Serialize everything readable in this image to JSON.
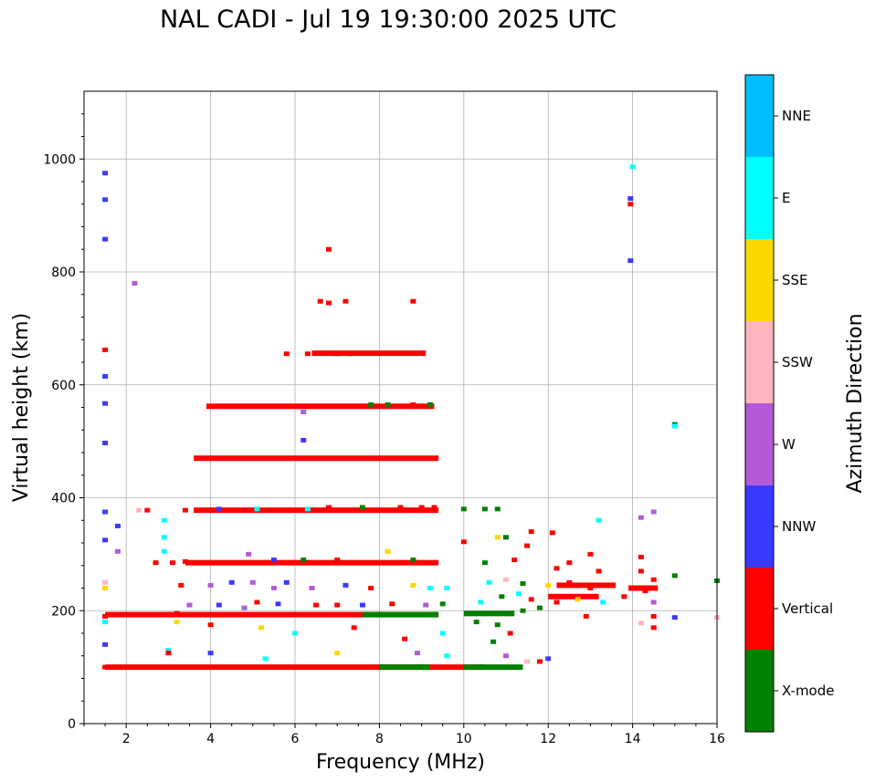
{
  "chart_data": {
    "type": "scatter",
    "title": "NAL CADI - Jul 19 19:30:00 2025 UTC",
    "xlabel": "Frequency (MHz)",
    "ylabel": "Virtual height (km)",
    "xlim": [
      1,
      16
    ],
    "ylim": [
      0,
      1120
    ],
    "xticks": [
      2,
      4,
      6,
      8,
      10,
      12,
      14,
      16
    ],
    "yticks": [
      0,
      200,
      400,
      600,
      800,
      1000
    ],
    "grid": true,
    "colorbar": {
      "label": "Azimuth Direction",
      "categories": [
        "X-mode",
        "Vertical",
        "NNW",
        "W",
        "SSW",
        "SSE",
        "E",
        "NNE"
      ],
      "colors": [
        "#008000",
        "#ff0000",
        "#3a3aff",
        "#b45ad8",
        "#ffb6c1",
        "#ffd700",
        "#00ffff",
        "#00bfff"
      ]
    },
    "points": [
      [
        1.5,
        975,
        2
      ],
      [
        1.5,
        928,
        2
      ],
      [
        1.5,
        858,
        2
      ],
      [
        1.5,
        662,
        1
      ],
      [
        1.5,
        615,
        2
      ],
      [
        1.5,
        567,
        2
      ],
      [
        1.5,
        497,
        2
      ],
      [
        1.5,
        375,
        2
      ],
      [
        1.5,
        325,
        2
      ],
      [
        1.5,
        250,
        4
      ],
      [
        1.5,
        240,
        5
      ],
      [
        1.5,
        190,
        1
      ],
      [
        1.5,
        180,
        6
      ],
      [
        1.5,
        140,
        2
      ],
      [
        1.5,
        100,
        1
      ],
      [
        1.8,
        350,
        2
      ],
      [
        1.8,
        305,
        3
      ],
      [
        2.2,
        780,
        3
      ],
      [
        2.3,
        378,
        4
      ],
      [
        2.5,
        378,
        1
      ],
      [
        2.7,
        285,
        1
      ],
      [
        2.9,
        360,
        6
      ],
      [
        2.9,
        330,
        6
      ],
      [
        2.9,
        305,
        6
      ],
      [
        3.1,
        285,
        1
      ],
      [
        3.4,
        378,
        1
      ],
      [
        3.2,
        195,
        1
      ],
      [
        3.0,
        130,
        6
      ],
      [
        4.2,
        380,
        2
      ],
      [
        5.1,
        380,
        6
      ],
      [
        6.3,
        380,
        6
      ],
      [
        6.8,
        383,
        1
      ],
      [
        7.6,
        383,
        0
      ],
      [
        8.5,
        383,
        1
      ],
      [
        9.0,
        383,
        1
      ],
      [
        9.3,
        383,
        1
      ],
      [
        10.0,
        380,
        0
      ],
      [
        10.5,
        380,
        0
      ],
      [
        10.8,
        380,
        0
      ],
      [
        3.4,
        287,
        1
      ],
      [
        4.9,
        300,
        3
      ],
      [
        5.5,
        290,
        2
      ],
      [
        6.2,
        290,
        0
      ],
      [
        7.0,
        290,
        1
      ],
      [
        8.2,
        305,
        5
      ],
      [
        8.8,
        290,
        0
      ],
      [
        10.5,
        285,
        0
      ],
      [
        11.2,
        290,
        1
      ],
      [
        11.5,
        315,
        1
      ],
      [
        12.2,
        275,
        1
      ],
      [
        12.5,
        285,
        1
      ],
      [
        13.2,
        270,
        1
      ],
      [
        10.0,
        322,
        1
      ],
      [
        10.8,
        330,
        5
      ],
      [
        11.0,
        330,
        0
      ],
      [
        11.6,
        340,
        1
      ],
      [
        12.1,
        338,
        1
      ],
      [
        13.0,
        300,
        1
      ],
      [
        13.2,
        360,
        6
      ],
      [
        14.2,
        365,
        3
      ],
      [
        14.5,
        375,
        3
      ],
      [
        14.2,
        295,
        1
      ],
      [
        14.5,
        255,
        1
      ],
      [
        14.2,
        270,
        1
      ],
      [
        14.0,
        986,
        6
      ],
      [
        13.95,
        930,
        2
      ],
      [
        13.95,
        920,
        1
      ],
      [
        13.95,
        820,
        2
      ],
      [
        15.0,
        530,
        0
      ],
      [
        15.0,
        527,
        6
      ],
      [
        16.0,
        253,
        0
      ],
      [
        15.0,
        262,
        0
      ],
      [
        6.2,
        552,
        3
      ],
      [
        6.2,
        502,
        2
      ],
      [
        6.8,
        840,
        1
      ],
      [
        6.6,
        748,
        1
      ],
      [
        6.8,
        745,
        1
      ],
      [
        7.2,
        748,
        1
      ],
      [
        8.8,
        748,
        1
      ],
      [
        5.8,
        655,
        1
      ],
      [
        6.3,
        655,
        1
      ],
      [
        7.0,
        655,
        1
      ],
      [
        7.3,
        655,
        1
      ],
      [
        7.8,
        565,
        0
      ],
      [
        8.2,
        565,
        0
      ],
      [
        8.8,
        565,
        1
      ],
      [
        9.2,
        565,
        0
      ],
      [
        3.3,
        245,
        1
      ],
      [
        4.0,
        245,
        3
      ],
      [
        4.5,
        250,
        2
      ],
      [
        5.0,
        250,
        3
      ],
      [
        5.5,
        240,
        3
      ],
      [
        5.8,
        250,
        2
      ],
      [
        6.4,
        240,
        3
      ],
      [
        7.2,
        245,
        2
      ],
      [
        7.8,
        240,
        1
      ],
      [
        8.8,
        245,
        5
      ],
      [
        9.2,
        240,
        6
      ],
      [
        9.6,
        240,
        6
      ],
      [
        3.5,
        210,
        3
      ],
      [
        4.2,
        210,
        2
      ],
      [
        4.8,
        205,
        3
      ],
      [
        5.1,
        215,
        1
      ],
      [
        5.6,
        212,
        2
      ],
      [
        6.5,
        210,
        1
      ],
      [
        7.0,
        210,
        1
      ],
      [
        7.6,
        210,
        2
      ],
      [
        8.3,
        212,
        1
      ],
      [
        9.1,
        210,
        3
      ],
      [
        9.5,
        212,
        0
      ],
      [
        3.2,
        180,
        5
      ],
      [
        4.0,
        175,
        1
      ],
      [
        5.2,
        170,
        5
      ],
      [
        6.0,
        160,
        6
      ],
      [
        7.4,
        170,
        1
      ],
      [
        8.6,
        150,
        1
      ],
      [
        9.5,
        160,
        6
      ],
      [
        3.0,
        125,
        1
      ],
      [
        4.0,
        125,
        2
      ],
      [
        5.3,
        115,
        6
      ],
      [
        7.0,
        125,
        5
      ],
      [
        8.9,
        125,
        3
      ],
      [
        9.6,
        120,
        6
      ],
      [
        10.3,
        180,
        0
      ],
      [
        10.8,
        175,
        0
      ],
      [
        11.4,
        200,
        0
      ],
      [
        11.8,
        205,
        0
      ],
      [
        12.2,
        215,
        1
      ],
      [
        12.7,
        220,
        5
      ],
      [
        13.3,
        215,
        6
      ],
      [
        13.8,
        225,
        1
      ],
      [
        14.3,
        235,
        1
      ],
      [
        14.5,
        215,
        3
      ],
      [
        14.5,
        190,
        1
      ],
      [
        15.0,
        188,
        2
      ],
      [
        16.0,
        188,
        4
      ],
      [
        14.5,
        170,
        1
      ],
      [
        14.2,
        178,
        4
      ],
      [
        12.9,
        190,
        1
      ],
      [
        10.4,
        215,
        6
      ],
      [
        10.9,
        225,
        0
      ],
      [
        11.3,
        230,
        6
      ],
      [
        11.6,
        220,
        1
      ],
      [
        12.0,
        245,
        5
      ],
      [
        12.5,
        250,
        1
      ],
      [
        13.0,
        240,
        1
      ],
      [
        10.6,
        250,
        6
      ],
      [
        11.0,
        255,
        4
      ],
      [
        11.4,
        248,
        0
      ],
      [
        10.7,
        145,
        0
      ],
      [
        11.1,
        160,
        1
      ],
      [
        11.0,
        120,
        3
      ],
      [
        11.5,
        110,
        4
      ],
      [
        12.0,
        115,
        2
      ],
      [
        11.8,
        110,
        1
      ]
    ],
    "bands": [
      {
        "xmin": 3.6,
        "xmax": 9.4,
        "y": 470,
        "color": 1
      },
      {
        "xmin": 3.9,
        "xmax": 9.3,
        "y": 562,
        "color": 1
      },
      {
        "xmin": 6.4,
        "xmax": 9.1,
        "y": 656,
        "color": 1
      },
      {
        "xmin": 3.6,
        "xmax": 9.4,
        "y": 378,
        "color": 1
      },
      {
        "xmin": 3.4,
        "xmax": 9.4,
        "y": 285,
        "color": 1
      },
      {
        "xmin": 1.5,
        "xmax": 9.4,
        "y": 193,
        "color": 1
      },
      {
        "xmin": 1.5,
        "xmax": 10.5,
        "y": 100,
        "color": 1
      },
      {
        "xmin": 10.0,
        "xmax": 11.4,
        "y": 100,
        "color": 0
      },
      {
        "xmin": 7.6,
        "xmax": 9.4,
        "y": 193,
        "color": 0
      },
      {
        "xmin": 8.0,
        "xmax": 9.2,
        "y": 100,
        "color": 0
      },
      {
        "xmin": 10.0,
        "xmax": 11.2,
        "y": 195,
        "color": 0
      },
      {
        "xmin": 12.2,
        "xmax": 13.6,
        "y": 245,
        "color": 1
      },
      {
        "xmin": 12.0,
        "xmax": 13.2,
        "y": 225,
        "color": 1
      },
      {
        "xmin": 13.9,
        "xmax": 14.6,
        "y": 240,
        "color": 1
      }
    ]
  }
}
